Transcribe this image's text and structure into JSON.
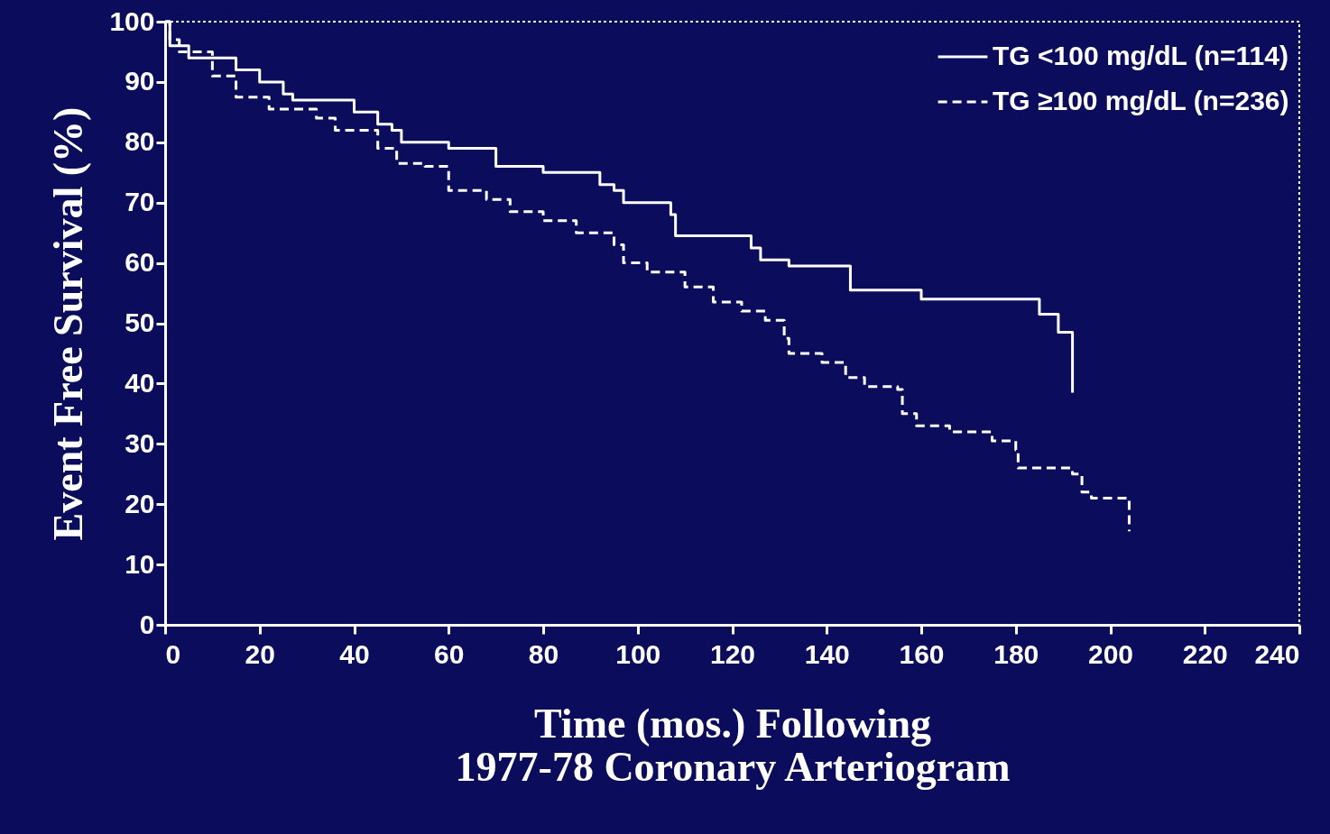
{
  "chart_data": {
    "type": "step",
    "xlabel": "Time (mos.) Following\n1977-78 Coronary Arteriogram",
    "ylabel": "Event Free Survival (%)",
    "xlim": [
      0,
      240
    ],
    "xticks": [
      0,
      20,
      40,
      60,
      80,
      100,
      120,
      140,
      160,
      180,
      200,
      220,
      240
    ],
    "ylim": [
      0,
      100
    ],
    "yticks": [
      0,
      10,
      20,
      30,
      40,
      50,
      60,
      70,
      80,
      90,
      100
    ],
    "grid": false,
    "legend": "top right",
    "series": [
      {
        "name": "TG <100 mg/dL (n=114)",
        "color": "#ffffff",
        "line_style": "solid",
        "x": [
          0,
          1,
          5,
          15,
          20,
          25,
          27,
          40,
          45,
          48,
          50,
          60,
          70,
          80,
          92,
          95,
          97,
          107,
          108,
          124,
          126,
          132,
          145,
          160,
          185,
          189,
          192
        ],
        "values": [
          100,
          96,
          94,
          92,
          90,
          88,
          87,
          85,
          83,
          82,
          80,
          79,
          76,
          75,
          73,
          72,
          70,
          68,
          64.5,
          62.5,
          60.5,
          59.5,
          55.5,
          54,
          51.5,
          48.5,
          38.5
        ]
      },
      {
        "name": "TG ≥100 mg/dL (n=236)",
        "color": "#ffffff",
        "line_style": "dashed",
        "x": [
          0,
          1,
          3,
          10,
          15,
          22,
          32,
          36,
          45,
          49,
          55,
          60,
          68,
          73,
          80,
          87,
          95,
          97,
          102,
          110,
          116,
          122,
          127,
          131,
          132,
          139,
          144,
          148,
          155,
          156,
          159,
          166,
          175,
          180,
          180.5,
          192,
          194,
          196,
          204
        ],
        "values": [
          100,
          97,
          95,
          91,
          87.5,
          85.5,
          84,
          82,
          79,
          76.5,
          76,
          72,
          70.5,
          68.5,
          67,
          65,
          63,
          60,
          58.5,
          56,
          53.5,
          52,
          50.5,
          47.5,
          45,
          43.5,
          41,
          39.5,
          39,
          35,
          33,
          32,
          30.5,
          29,
          26,
          25,
          22,
          21,
          15.5
        ]
      }
    ]
  }
}
